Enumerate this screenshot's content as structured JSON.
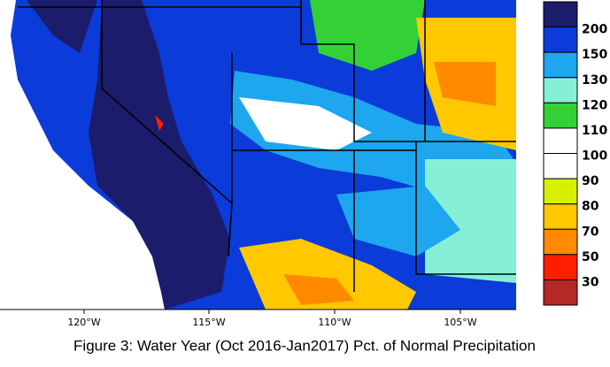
{
  "map": {
    "caption": "Figure 3: Water Year (Oct 2016-Jan2017) Pct. of Normal Precipitation",
    "longitudes": [
      "120°W",
      "115°W",
      "110°W",
      "105°W"
    ],
    "legend": {
      "labels": [
        200,
        150,
        130,
        120,
        110,
        100,
        90,
        80,
        70,
        50,
        30
      ],
      "colors": [
        "#1b1c6b",
        "#0b3bd8",
        "#1ea6ef",
        "#86f0d6",
        "#33d136",
        "#ffffff",
        "#ffffff",
        "#d8f000",
        "#ffc800",
        "#ff8a00",
        "#ff1e00",
        "#b52828"
      ]
    }
  }
}
